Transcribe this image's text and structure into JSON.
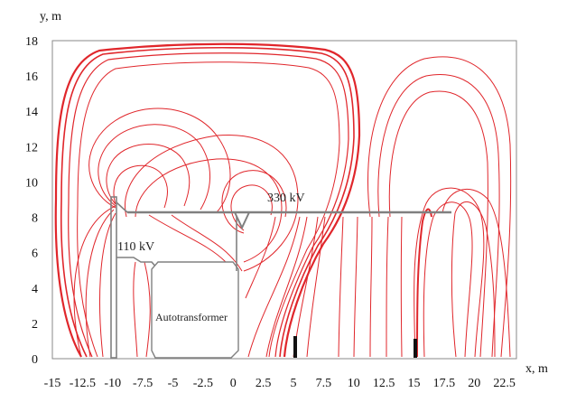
{
  "chart_data": {
    "type": "line",
    "title": "",
    "xlabel": "x, m",
    "ylabel": "y, m",
    "xlim": [
      -15,
      23.5
    ],
    "ylim": [
      0,
      18
    ],
    "x_ticks": [
      "-15",
      "-12.5",
      "-10",
      "-7.5",
      "-5",
      "-2.5",
      "0",
      "2.5",
      "5",
      "7.5",
      "10",
      "12.5",
      "15",
      "17.5",
      "20",
      "22.5"
    ],
    "y_ticks": [
      "0",
      "2",
      "4",
      "6",
      "8",
      "10",
      "12",
      "14",
      "16",
      "18"
    ],
    "grid": false,
    "annotations": {
      "bus_330": "330 kV",
      "bus_110": "110 kV",
      "autotransformer": "Autotransformer"
    },
    "structures": {
      "busbar_330": {
        "x": [
          -10,
          18.5
        ],
        "y": 8.6
      },
      "busbar_110": {
        "x": [
          -9.8,
          -7.8
        ],
        "y": 5.9
      },
      "portal_left": {
        "x": -10.2,
        "y_top": 9.5
      },
      "autotransformer_box": {
        "x": [
          -7.5,
          0.3
        ],
        "y": [
          0.2,
          6.0
        ]
      },
      "vertical_posts": [
        {
          "x": 5.0,
          "y_top": 1.5
        },
        {
          "x": 15.0,
          "y_top": 1.3
        }
      ]
    },
    "colors": {
      "field_lines": "#e0262b",
      "structures": "#808080",
      "axes": "#8a8a8a"
    }
  }
}
